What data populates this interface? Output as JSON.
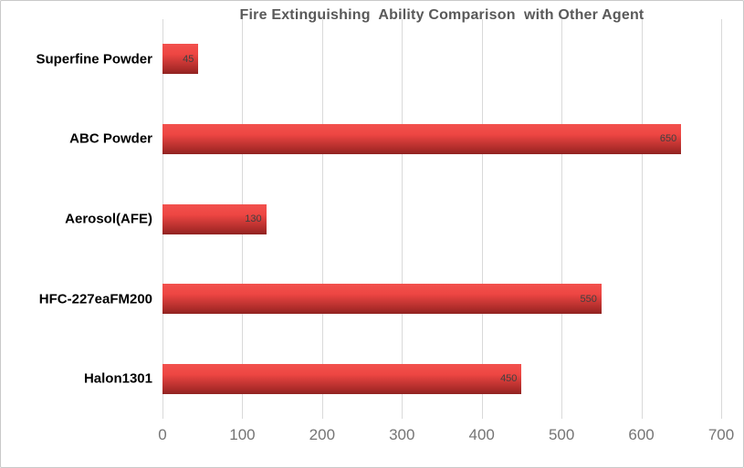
{
  "chart_data": {
    "type": "bar",
    "orientation": "horizontal",
    "title": "Fire Extinguishing  Ability Comparison  with Other Agent",
    "categories": [
      "Superfine Powder",
      "ABC Powder",
      "Aerosol(AFE)",
      "HFC-227eaFM200",
      "Halon1301"
    ],
    "values": [
      45,
      650,
      130,
      550,
      450
    ],
    "data_labels": [
      "45",
      "650",
      "130",
      "550",
      "450"
    ],
    "xlabel": "",
    "ylabel": "",
    "xlim": [
      0,
      700
    ],
    "x_ticks": [
      "0",
      "100",
      "200",
      "300",
      "400",
      "500",
      "600",
      "700"
    ],
    "grid": "vertical",
    "legend": "none",
    "data_label_position": "inside-end",
    "colors": {
      "bar_gradient_top": "#f2514d",
      "bar_gradient_bottom": "#8f2321",
      "gridline": "#d9d9d9",
      "title_text": "#595959",
      "tick_text": "#757575",
      "category_text": "#000000",
      "data_label_text": "#404040",
      "background": "#ffffff",
      "frame_border": "#c9c9c9"
    }
  }
}
